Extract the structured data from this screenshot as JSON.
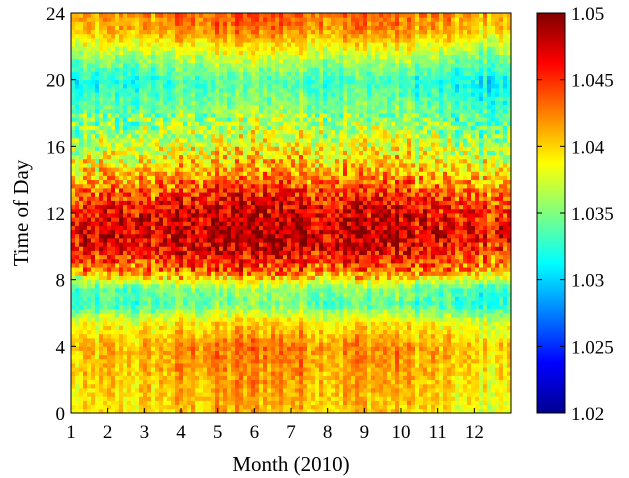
{
  "chart_data": {
    "type": "heatmap",
    "xlabel": "Month (2010)",
    "ylabel": "Time of Day",
    "xlim": [
      1,
      13
    ],
    "ylim": [
      0,
      24
    ],
    "x_ticks": [
      1,
      2,
      3,
      4,
      5,
      6,
      7,
      8,
      9,
      10,
      11,
      12
    ],
    "y_ticks": [
      0,
      4,
      8,
      12,
      16,
      20,
      24
    ],
    "colorbar": {
      "range": [
        1.02,
        1.05
      ],
      "ticks": [
        "1.02",
        "1.025",
        "1.03",
        "1.035",
        "1.04",
        "1.045",
        "1.05"
      ],
      "colormap": "jet"
    },
    "hour_profile": [
      {
        "hour": 0,
        "value": 1.039
      },
      {
        "hour": 2,
        "value": 1.04
      },
      {
        "hour": 4,
        "value": 1.041
      },
      {
        "hour": 5.5,
        "value": 1.038
      },
      {
        "hour": 6.5,
        "value": 1.033
      },
      {
        "hour": 7.5,
        "value": 1.034
      },
      {
        "hour": 8.5,
        "value": 1.042
      },
      {
        "hour": 10,
        "value": 1.046
      },
      {
        "hour": 11,
        "value": 1.047
      },
      {
        "hour": 12,
        "value": 1.046
      },
      {
        "hour": 13,
        "value": 1.044
      },
      {
        "hour": 14.5,
        "value": 1.04
      },
      {
        "hour": 16,
        "value": 1.037
      },
      {
        "hour": 17.5,
        "value": 1.035
      },
      {
        "hour": 19,
        "value": 1.033
      },
      {
        "hour": 20,
        "value": 1.032
      },
      {
        "hour": 21.5,
        "value": 1.036
      },
      {
        "hour": 23,
        "value": 1.041
      },
      {
        "hour": 24,
        "value": 1.042
      }
    ],
    "monthly_offset": [
      {
        "month": 1,
        "value": -0.001
      },
      {
        "month": 2,
        "value": 0.0
      },
      {
        "month": 3,
        "value": 0.0
      },
      {
        "month": 4,
        "value": 0.001
      },
      {
        "month": 5,
        "value": 0.0015
      },
      {
        "month": 6,
        "value": 0.002
      },
      {
        "month": 7,
        "value": 0.002
      },
      {
        "month": 8,
        "value": 0.001
      },
      {
        "month": 9,
        "value": 0.0015
      },
      {
        "month": 10,
        "value": 0.001
      },
      {
        "month": 11,
        "value": 0.0
      },
      {
        "month": 12,
        "value": -0.001
      },
      {
        "month": 13,
        "value": -0.001
      }
    ],
    "grid": false,
    "legend": "colorbar-right"
  }
}
